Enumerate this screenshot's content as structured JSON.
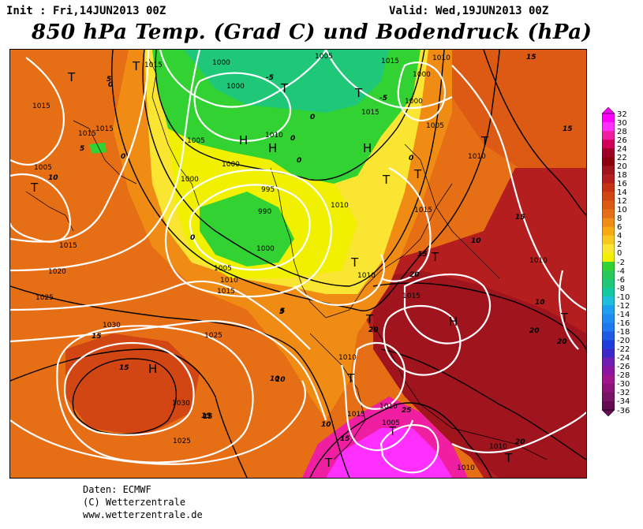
{
  "header": {
    "init_text": "Init : Fri,14JUN2013 00Z",
    "valid_text": "Valid: Wed,19JUN2013 00Z",
    "title": "850 hPa Temp. (Grad C) und Bodendruck (hPa)"
  },
  "colorbar": {
    "labels": [
      "32",
      "30",
      "28",
      "26",
      "24",
      "22",
      "20",
      "18",
      "16",
      "14",
      "12",
      "10",
      "8",
      "6",
      "4",
      "2",
      "0",
      "-2",
      "-4",
      "-6",
      "-8",
      "-10",
      "-12",
      "-14",
      "-16",
      "-18",
      "-20",
      "-22",
      "-24",
      "-26",
      "-28",
      "-30",
      "-32",
      "-34",
      "-36"
    ],
    "colors": [
      "#ff00ff",
      "#ff30ff",
      "#f01ea0",
      "#d2005a",
      "#a00028",
      "#8c0010",
      "#a0141e",
      "#b41e1e",
      "#c83214",
      "#d24614",
      "#dc5a14",
      "#e66e14",
      "#f08c14",
      "#f5aa14",
      "#f8c81e",
      "#fae632",
      "#f0f000",
      "#32d232",
      "#28c85a",
      "#1ec878",
      "#14c8a0",
      "#1ebedc",
      "#1ea0f0",
      "#1e8cf0",
      "#1e78f0",
      "#1e5ae6",
      "#1e3cdc",
      "#3c28c8",
      "#6e1eb4",
      "#8c14a0",
      "#a0148c",
      "#8c1478",
      "#781464",
      "#640a50"
    ]
  },
  "pressure_labels": [
    "1015",
    "1000",
    "1005",
    "1015",
    "1010",
    "1000",
    "1015",
    "1000",
    "1015",
    "1015",
    "1005",
    "1010",
    "1015",
    "1005",
    "1010",
    "1005",
    "1000",
    "1000",
    "1000",
    "995",
    "990",
    "1000",
    "1010",
    "1015",
    "1005",
    "1010",
    "1015",
    "1020",
    "1025",
    "1030",
    "1015",
    "1025",
    "1010",
    "1030",
    "1015",
    "1010",
    "1025",
    "1010",
    "1015",
    "1005",
    "1010",
    "1010",
    "1010"
  ],
  "temp_labels": [
    "0",
    "0",
    "0",
    "0",
    "-5",
    "-5",
    "0",
    "0",
    "5",
    "5",
    "5",
    "0",
    "10",
    "10",
    "15",
    "15",
    "10",
    "15",
    "20",
    "20",
    "20",
    "15",
    "15",
    "10",
    "10",
    "15",
    "15",
    "20",
    "20",
    "15",
    "25",
    "10",
    "5",
    "15"
  ],
  "pressure_systems": [
    "T",
    "T",
    "T",
    "T",
    "T",
    "H",
    "H",
    "H",
    "H",
    "T",
    "T",
    "T",
    "T",
    "T",
    "T",
    "T",
    "T",
    "H",
    "T",
    "T",
    "T"
  ],
  "footer": {
    "line1": "Daten: ECMWF",
    "line2": "(C) Wetterzentrale",
    "line3": "www.wetterzentrale.de"
  }
}
